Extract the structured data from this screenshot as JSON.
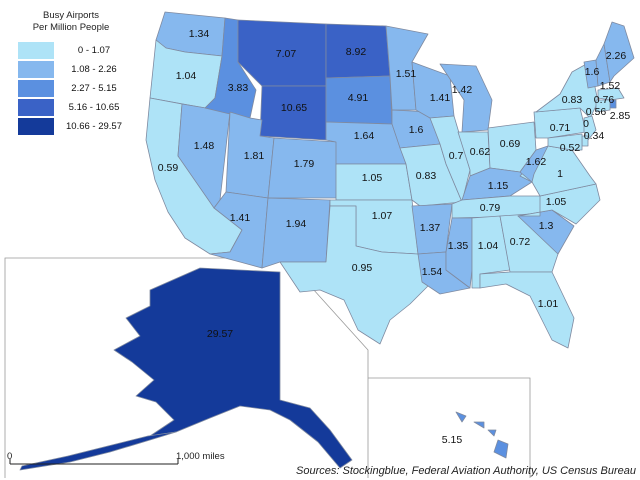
{
  "legend": {
    "title_line1": "Busy Airports",
    "title_line2": "Per Million People",
    "bins": [
      {
        "label": "0 - 1.07",
        "color": "#aee3f7"
      },
      {
        "label": "1.08 - 2.26",
        "color": "#86b8ee"
      },
      {
        "label": "2.27 - 5.15",
        "color": "#5b90e0"
      },
      {
        "label": "5.16 - 10.65",
        "color": "#3a62c6"
      },
      {
        "label": "10.66 - 29.57",
        "color": "#143a9a"
      }
    ]
  },
  "states": {
    "WA": "1.34",
    "OR": "1.04",
    "CA": "0.59",
    "NV": "1.48",
    "ID": "3.83",
    "MT": "7.07",
    "WY": "10.65",
    "UT": "1.81",
    "AZ": "1.41",
    "CO": "1.79",
    "NM": "1.94",
    "ND": "8.92",
    "SD": "4.91",
    "NE": "1.64",
    "KS": "1.05",
    "OK": "1.07",
    "TX": "0.95",
    "MN": "1.51",
    "IA": "1.6",
    "MO": "0.83",
    "AR": "1.37",
    "LA": "1.54",
    "WI": "1.41",
    "IL": "0.7",
    "MI": "1.42",
    "IN": "0.62",
    "OH": "0.69",
    "KY": "1.15",
    "TN": "0.79",
    "MS": "1.35",
    "AL": "1.04",
    "GA": "0.72",
    "FL": "1.01",
    "SC": "1.3",
    "NC": "1.05",
    "VA": "1",
    "WV": "1.62",
    "PA": "0.71",
    "NY": "0.83",
    "VT": "1.6",
    "NH": "1.52",
    "ME": "2.26",
    "MA": "0.76",
    "RI": "2.85",
    "CT": "0.56",
    "NJ": "0.34",
    "DE": "0",
    "MD": "0.52",
    "AK": "29.57",
    "HI": "5.15"
  },
  "scale": {
    "start": "0",
    "end": "1,000 miles"
  },
  "source": "Sources: Stockingblue, Federal Aviation Authority, US Census Bureau"
}
